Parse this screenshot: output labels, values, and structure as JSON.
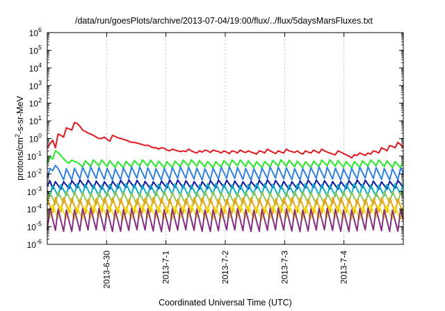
{
  "chart_data": {
    "type": "line",
    "title": "/data/run/goesPlots/archive/2013-07-04/19:00/flux/../flux/5daysMarsFluxes.txt",
    "xlabel": "Coordinated Universal Time (UTC)",
    "ylabel": {
      "pre": "protons/cm",
      "sup": "2",
      "post": "-s-sr-MeV"
    },
    "y_scale": "log",
    "ylim_exp": [
      -6,
      6
    ],
    "y_tick_exponents": [
      -6,
      -5,
      -4,
      -3,
      -2,
      -1,
      0,
      1,
      2,
      3,
      4,
      5,
      6
    ],
    "xlim_days": [
      0,
      6
    ],
    "x_tick_labels": [
      "2013-6-30",
      "2013-7-1",
      "2013-7-2",
      "2013-7-3",
      "2013-7-4"
    ],
    "x_tick_days": [
      1,
      2,
      3,
      4,
      5
    ],
    "grid": true,
    "series": [
      {
        "color": "#e8141c",
        "values": [
          0.3,
          0.5,
          0.8,
          0.3,
          1.8,
          1.5,
          1.2,
          4,
          3.5,
          3,
          8,
          7,
          5,
          3,
          2.5,
          2,
          1.8,
          1.5,
          1.2,
          1,
          1,
          1.2,
          0.9,
          0.7,
          1.5,
          1.3,
          1.1,
          1,
          0.9,
          0.8,
          0.7,
          0.6,
          0.6,
          0.55,
          0.5,
          0.45,
          0.4,
          0.42,
          0.35,
          0.3,
          0.3,
          0.25,
          0.3,
          0.28,
          0.22,
          0.2,
          0.25,
          0.22,
          0.2,
          0.18,
          0.2,
          0.18,
          0.25,
          0.2,
          0.17,
          0.15,
          0.2,
          0.17,
          0.22,
          0.2,
          0.16,
          0.22,
          0.2,
          0.18,
          0.15,
          0.2,
          0.17,
          0.14,
          0.2,
          0.18,
          0.15,
          0.22,
          0.18,
          0.16,
          0.2,
          0.17,
          0.15,
          0.13,
          0.2,
          0.18,
          0.15,
          0.25,
          0.2,
          0.17,
          0.14,
          0.2,
          0.17,
          0.15,
          0.25,
          0.2,
          0.18,
          0.16,
          0.2,
          0.15,
          0.13,
          0.2,
          0.17,
          0.15,
          0.22,
          0.18,
          0.15,
          0.25,
          0.2,
          0.17,
          0.15,
          0.13,
          0.12,
          0.2,
          0.17,
          0.14,
          0.12,
          0.1,
          0.08,
          0.12,
          0.11,
          0.15,
          0.13,
          0.11,
          0.15,
          0.13,
          0.2,
          0.18,
          0.15,
          0.3,
          0.25,
          0.2,
          0.4,
          0.35,
          0.3,
          0.6,
          0.45,
          0.3
        ]
      },
      {
        "color": "#22ee22",
        "low": 0.025,
        "high": 0.055,
        "start": [
          0.04,
          0.09,
          0.07,
          0.2,
          0.16,
          0.11,
          0.07,
          0.05,
          0.04,
          0.06,
          0.05,
          0.045
        ]
      },
      {
        "color": "#2e7ff0",
        "low": 0.005,
        "high": 0.022,
        "start": [
          0.006,
          0.02,
          0.015,
          0.03,
          0.02
        ]
      },
      {
        "color": "#0a14b4",
        "low": 0.0015,
        "high": 0.004,
        "start": [
          0.002,
          0.004
        ]
      },
      {
        "color": "#00b4c8",
        "low": 0.0006,
        "high": 0.0025
      },
      {
        "color": "#90c850",
        "low": 0.0002,
        "high": 0.0009
      },
      {
        "color": "#f5a20a",
        "low": 6e-05,
        "high": 0.0004
      },
      {
        "color": "#f0e614",
        "low": 3e-05,
        "high": 0.00015
      },
      {
        "color": "#8a2c84",
        "low": 6e-06,
        "high": 0.0001
      }
    ]
  }
}
